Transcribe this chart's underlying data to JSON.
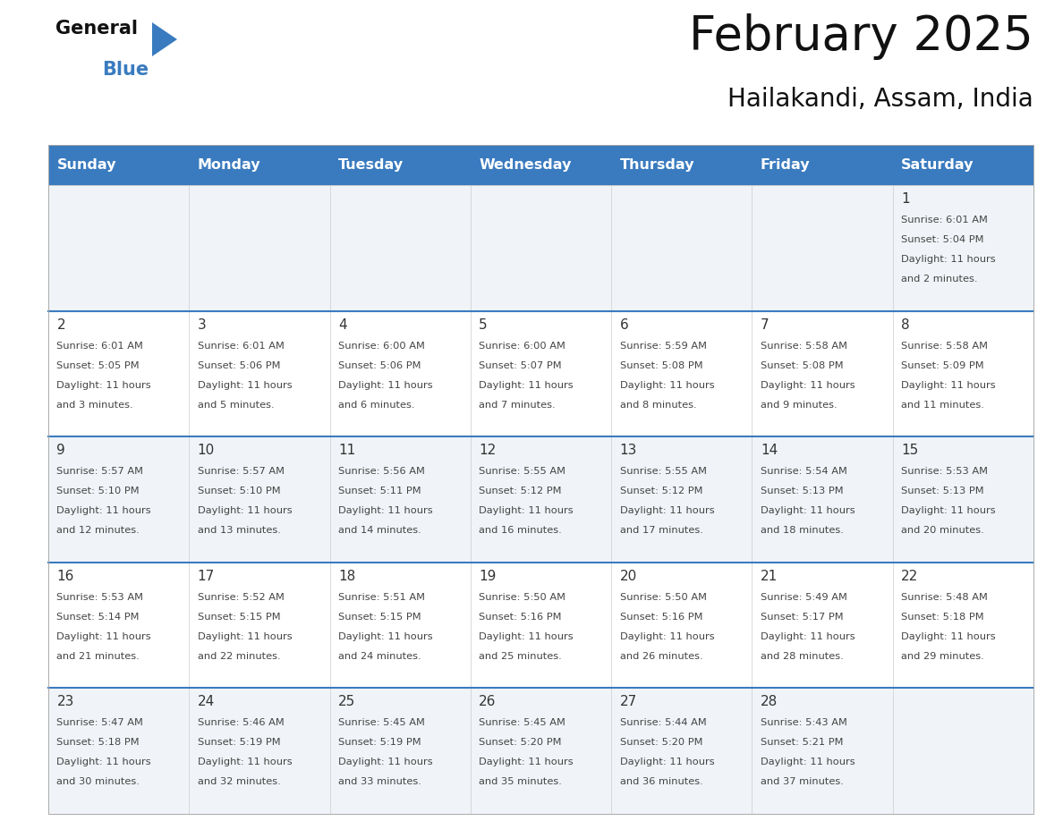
{
  "title": "February 2025",
  "subtitle": "Hailakandi, Assam, India",
  "header_bg_color": "#3a7bbf",
  "header_text_color": "#ffffff",
  "day_names": [
    "Sunday",
    "Monday",
    "Tuesday",
    "Wednesday",
    "Thursday",
    "Friday",
    "Saturday"
  ],
  "cell_bg_even": "#f0f4f8",
  "cell_bg_odd": "#ffffff",
  "separator_color": "#3a7bbf",
  "date_text_color": "#333333",
  "info_text_color": "#444444",
  "calendar": [
    [
      null,
      null,
      null,
      null,
      null,
      null,
      {
        "day": 1,
        "sunrise": "6:01 AM",
        "sunset": "5:04 PM",
        "daylight_hours": 11,
        "daylight_minutes": 2
      }
    ],
    [
      {
        "day": 2,
        "sunrise": "6:01 AM",
        "sunset": "5:05 PM",
        "daylight_hours": 11,
        "daylight_minutes": 3
      },
      {
        "day": 3,
        "sunrise": "6:01 AM",
        "sunset": "5:06 PM",
        "daylight_hours": 11,
        "daylight_minutes": 5
      },
      {
        "day": 4,
        "sunrise": "6:00 AM",
        "sunset": "5:06 PM",
        "daylight_hours": 11,
        "daylight_minutes": 6
      },
      {
        "day": 5,
        "sunrise": "6:00 AM",
        "sunset": "5:07 PM",
        "daylight_hours": 11,
        "daylight_minutes": 7
      },
      {
        "day": 6,
        "sunrise": "5:59 AM",
        "sunset": "5:08 PM",
        "daylight_hours": 11,
        "daylight_minutes": 8
      },
      {
        "day": 7,
        "sunrise": "5:58 AM",
        "sunset": "5:08 PM",
        "daylight_hours": 11,
        "daylight_minutes": 9
      },
      {
        "day": 8,
        "sunrise": "5:58 AM",
        "sunset": "5:09 PM",
        "daylight_hours": 11,
        "daylight_minutes": 11
      }
    ],
    [
      {
        "day": 9,
        "sunrise": "5:57 AM",
        "sunset": "5:10 PM",
        "daylight_hours": 11,
        "daylight_minutes": 12
      },
      {
        "day": 10,
        "sunrise": "5:57 AM",
        "sunset": "5:10 PM",
        "daylight_hours": 11,
        "daylight_minutes": 13
      },
      {
        "day": 11,
        "sunrise": "5:56 AM",
        "sunset": "5:11 PM",
        "daylight_hours": 11,
        "daylight_minutes": 14
      },
      {
        "day": 12,
        "sunrise": "5:55 AM",
        "sunset": "5:12 PM",
        "daylight_hours": 11,
        "daylight_minutes": 16
      },
      {
        "day": 13,
        "sunrise": "5:55 AM",
        "sunset": "5:12 PM",
        "daylight_hours": 11,
        "daylight_minutes": 17
      },
      {
        "day": 14,
        "sunrise": "5:54 AM",
        "sunset": "5:13 PM",
        "daylight_hours": 11,
        "daylight_minutes": 18
      },
      {
        "day": 15,
        "sunrise": "5:53 AM",
        "sunset": "5:13 PM",
        "daylight_hours": 11,
        "daylight_minutes": 20
      }
    ],
    [
      {
        "day": 16,
        "sunrise": "5:53 AM",
        "sunset": "5:14 PM",
        "daylight_hours": 11,
        "daylight_minutes": 21
      },
      {
        "day": 17,
        "sunrise": "5:52 AM",
        "sunset": "5:15 PM",
        "daylight_hours": 11,
        "daylight_minutes": 22
      },
      {
        "day": 18,
        "sunrise": "5:51 AM",
        "sunset": "5:15 PM",
        "daylight_hours": 11,
        "daylight_minutes": 24
      },
      {
        "day": 19,
        "sunrise": "5:50 AM",
        "sunset": "5:16 PM",
        "daylight_hours": 11,
        "daylight_minutes": 25
      },
      {
        "day": 20,
        "sunrise": "5:50 AM",
        "sunset": "5:16 PM",
        "daylight_hours": 11,
        "daylight_minutes": 26
      },
      {
        "day": 21,
        "sunrise": "5:49 AM",
        "sunset": "5:17 PM",
        "daylight_hours": 11,
        "daylight_minutes": 28
      },
      {
        "day": 22,
        "sunrise": "5:48 AM",
        "sunset": "5:18 PM",
        "daylight_hours": 11,
        "daylight_minutes": 29
      }
    ],
    [
      {
        "day": 23,
        "sunrise": "5:47 AM",
        "sunset": "5:18 PM",
        "daylight_hours": 11,
        "daylight_minutes": 30
      },
      {
        "day": 24,
        "sunrise": "5:46 AM",
        "sunset": "5:19 PM",
        "daylight_hours": 11,
        "daylight_minutes": 32
      },
      {
        "day": 25,
        "sunrise": "5:45 AM",
        "sunset": "5:19 PM",
        "daylight_hours": 11,
        "daylight_minutes": 33
      },
      {
        "day": 26,
        "sunrise": "5:45 AM",
        "sunset": "5:20 PM",
        "daylight_hours": 11,
        "daylight_minutes": 35
      },
      {
        "day": 27,
        "sunrise": "5:44 AM",
        "sunset": "5:20 PM",
        "daylight_hours": 11,
        "daylight_minutes": 36
      },
      {
        "day": 28,
        "sunrise": "5:43 AM",
        "sunset": "5:21 PM",
        "daylight_hours": 11,
        "daylight_minutes": 37
      },
      null
    ]
  ],
  "logo_general_color": "#111111",
  "logo_blue_color": "#3a7bbf",
  "logo_triangle_color": "#3a7bbf"
}
